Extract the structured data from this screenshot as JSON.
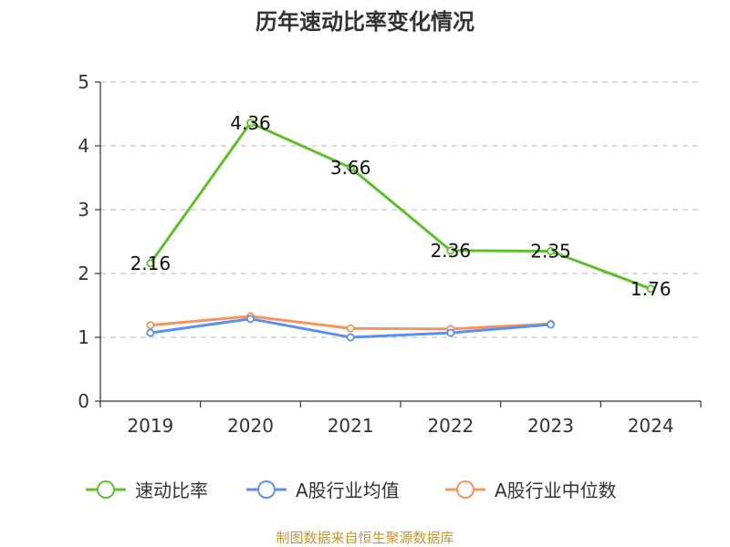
{
  "source_note": "制图数据来自恒生聚源数据库",
  "colors": {
    "series_green": "#5cbf2b",
    "series_blue": "#5b8ff0",
    "series_orange": "#f5945c",
    "grid": "#c8c8c8",
    "axis": "#333333"
  },
  "chart_data": {
    "type": "line",
    "title": "历年速动比率变化情况",
    "xlabel": "",
    "ylabel": "",
    "categories": [
      "2019",
      "2020",
      "2021",
      "2022",
      "2023",
      "2024"
    ],
    "y_ticks": [
      "0",
      "1",
      "2",
      "3",
      "4",
      "5"
    ],
    "ylim": [
      0,
      5
    ],
    "grid": "horizontal dashed",
    "legend_position": "bottom",
    "series": [
      {
        "name": "速动比率",
        "values": [
          2.16,
          4.36,
          3.66,
          2.36,
          2.35,
          1.76
        ],
        "labels": [
          "2.16",
          "4.36",
          "3.66",
          "2.36",
          "2.35",
          "1.76"
        ],
        "color": "#5cbf2b"
      },
      {
        "name": "A股行业均值",
        "values": [
          1.07,
          1.29,
          1.0,
          1.07,
          1.2,
          null
        ],
        "color": "#5b8ff0"
      },
      {
        "name": "A股行业中位数",
        "values": [
          1.19,
          1.33,
          1.14,
          1.13,
          1.21,
          null
        ],
        "color": "#f5945c"
      }
    ]
  }
}
